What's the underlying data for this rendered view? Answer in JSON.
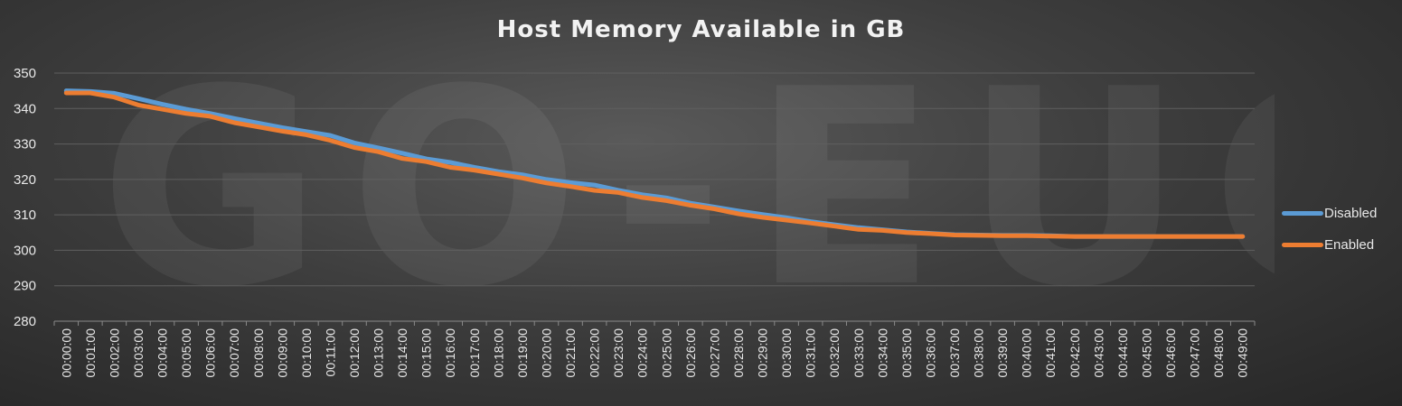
{
  "chart_data": {
    "type": "line",
    "title": "Host Memory Available in GB",
    "xlabel": "",
    "ylabel": "",
    "ylim": [
      280,
      350
    ],
    "yticks": [
      280,
      290,
      300,
      310,
      320,
      330,
      340,
      350
    ],
    "grid": true,
    "legend": "right",
    "categories": [
      "00:00:00",
      "00:01:00",
      "00:02:00",
      "00:03:00",
      "00:04:00",
      "00:05:00",
      "00:06:00",
      "00:07:00",
      "00:08:00",
      "00:09:00",
      "00:10:00",
      "00:11:00",
      "00:12:00",
      "00:13:00",
      "00:14:00",
      "00:15:00",
      "00:16:00",
      "00:17:00",
      "00:18:00",
      "00:19:00",
      "00:20:00",
      "00:21:00",
      "00:22:00",
      "00:23:00",
      "00:24:00",
      "00:25:00",
      "00:26:00",
      "00:27:00",
      "00:28:00",
      "00:29:00",
      "00:30:00",
      "00:31:00",
      "00:32:00",
      "00:33:00",
      "00:34:00",
      "00:35:00",
      "00:36:00",
      "00:37:00",
      "00:38:00",
      "00:39:00",
      "00:40:00",
      "00:41:00",
      "00:42:00",
      "00:43:00",
      "00:44:00",
      "00:45:00",
      "00:46:00",
      "00:47:00",
      "00:48:00",
      "00:49:00"
    ],
    "series": [
      {
        "name": "Disabled",
        "color": "#5b9bd5",
        "values": [
          345.0,
          344.8,
          344.3,
          342.8,
          341.2,
          339.8,
          338.6,
          337.2,
          335.9,
          334.6,
          333.5,
          332.4,
          330.3,
          328.9,
          327.4,
          325.8,
          324.8,
          323.4,
          322.2,
          321.3,
          320.0,
          319.1,
          318.4,
          316.9,
          315.7,
          314.8,
          313.3,
          312.2,
          311.1,
          310.1,
          309.2,
          308.1,
          307.2,
          306.4,
          305.8,
          305.2,
          304.8,
          304.4,
          304.3,
          304.2,
          304.2,
          304.1,
          303.9,
          303.9,
          303.9,
          303.9,
          303.9,
          303.9,
          303.9,
          303.9
        ]
      },
      {
        "name": "Enabled",
        "color": "#ed7d31",
        "values": [
          344.4,
          344.4,
          343.2,
          341.0,
          339.8,
          338.6,
          337.8,
          336.0,
          334.8,
          333.6,
          332.6,
          331.0,
          329.0,
          327.8,
          325.9,
          325.0,
          323.4,
          322.6,
          321.5,
          320.4,
          319.0,
          318.0,
          316.9,
          316.3,
          314.9,
          314.0,
          312.7,
          311.7,
          310.3,
          309.3,
          308.5,
          307.7,
          306.8,
          305.9,
          305.6,
          305.0,
          304.7,
          304.3,
          304.2,
          304.1,
          304.1,
          304.0,
          303.9,
          303.9,
          303.9,
          303.9,
          303.9,
          303.9,
          303.9,
          303.9
        ]
      }
    ]
  },
  "watermark": "GO-EUC",
  "colors": {
    "background": "#3e3e3e",
    "gridline": "#5f5f5f",
    "text": "#e8e8e8"
  }
}
